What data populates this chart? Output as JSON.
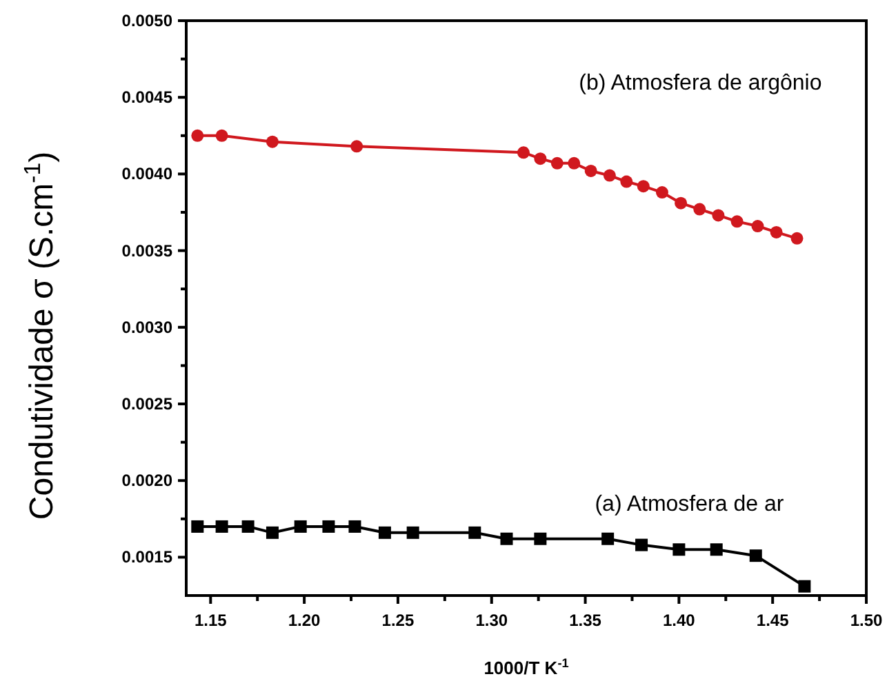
{
  "chart_data": {
    "type": "line",
    "xlabel": "1000/T K$^{-1}$",
    "ylabel": "Condutividade σ (S.cm$^{-1}$)",
    "xlim": [
      1.137,
      1.5
    ],
    "ylim": [
      0.00125,
      0.005
    ],
    "xticks": [
      {
        "value": 1.15,
        "label": "1.15"
      },
      {
        "value": 1.175,
        "label": null
      },
      {
        "value": 1.2,
        "label": "1.20"
      },
      {
        "value": 1.225,
        "label": null
      },
      {
        "value": 1.25,
        "label": "1.25"
      },
      {
        "value": 1.275,
        "label": null
      },
      {
        "value": 1.3,
        "label": "1.30"
      },
      {
        "value": 1.325,
        "label": null
      },
      {
        "value": 1.35,
        "label": "1.35"
      },
      {
        "value": 1.375,
        "label": null
      },
      {
        "value": 1.4,
        "label": "1.40"
      },
      {
        "value": 1.425,
        "label": null
      },
      {
        "value": 1.45,
        "label": "1.45"
      },
      {
        "value": 1.475,
        "label": null
      },
      {
        "value": 1.5,
        "label": "1.50"
      }
    ],
    "yticks": [
      {
        "value": 0.0015,
        "label": "0.0015"
      },
      {
        "value": 0.00175,
        "label": null
      },
      {
        "value": 0.002,
        "label": "0.0020"
      },
      {
        "value": 0.00225,
        "label": null
      },
      {
        "value": 0.0025,
        "label": "0.0025"
      },
      {
        "value": 0.00275,
        "label": null
      },
      {
        "value": 0.003,
        "label": "0.0030"
      },
      {
        "value": 0.00325,
        "label": null
      },
      {
        "value": 0.0035,
        "label": "0.0035"
      },
      {
        "value": 0.00375,
        "label": null
      },
      {
        "value": 0.004,
        "label": "0.0040"
      },
      {
        "value": 0.00425,
        "label": null
      },
      {
        "value": 0.0045,
        "label": "0.0045"
      },
      {
        "value": 0.00475,
        "label": null
      },
      {
        "value": 0.005,
        "label": "0.0050"
      }
    ],
    "grid": false,
    "legend": false,
    "series": [
      {
        "name": "(b) Atmosfera de argônio",
        "color": "#d0181e",
        "marker": "circle",
        "x": [
          1.143,
          1.156,
          1.183,
          1.228,
          1.317,
          1.326,
          1.335,
          1.344,
          1.353,
          1.363,
          1.372,
          1.381,
          1.391,
          1.401,
          1.411,
          1.421,
          1.431,
          1.442,
          1.452,
          1.463
        ],
        "values": [
          0.00425,
          0.00425,
          0.00421,
          0.00418,
          0.00414,
          0.0041,
          0.00407,
          0.00407,
          0.00402,
          0.00399,
          0.00395,
          0.00392,
          0.00388,
          0.00381,
          0.00377,
          0.00373,
          0.00369,
          0.00366,
          0.00362,
          0.00358
        ]
      },
      {
        "name": "(a) Atmosfera de ar",
        "color": "#000000",
        "marker": "square",
        "x": [
          1.143,
          1.156,
          1.17,
          1.183,
          1.198,
          1.213,
          1.227,
          1.243,
          1.258,
          1.291,
          1.308,
          1.326,
          1.362,
          1.38,
          1.4,
          1.42,
          1.441,
          1.467
        ],
        "values": [
          0.0017,
          0.0017,
          0.0017,
          0.00166,
          0.0017,
          0.0017,
          0.0017,
          0.00166,
          0.00166,
          0.00166,
          0.00162,
          0.00162,
          0.00162,
          0.00158,
          0.00155,
          0.00155,
          0.00151,
          0.00131
        ]
      }
    ]
  }
}
